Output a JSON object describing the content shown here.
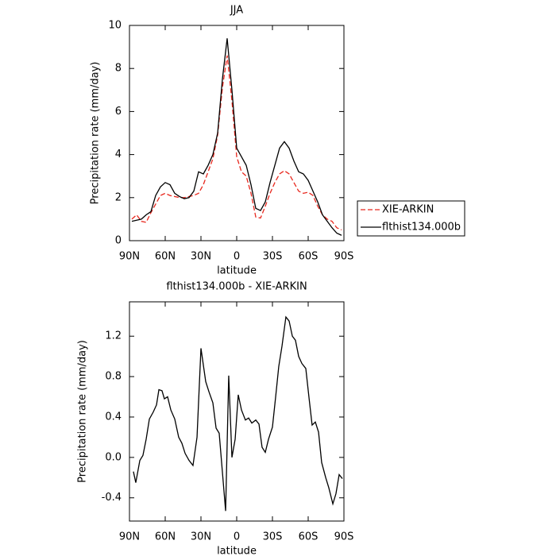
{
  "chart_data": [
    {
      "type": "line",
      "title": "JJA",
      "xlabel": "latitude",
      "ylabel": "Precipitation rate (mm/day)",
      "x": [
        88,
        84,
        80,
        76,
        72,
        68,
        64,
        60,
        56,
        52,
        48,
        44,
        40,
        36,
        32,
        28,
        24,
        20,
        16,
        12,
        8,
        4,
        0,
        -4,
        -8,
        -12,
        -16,
        -20,
        -24,
        -28,
        -32,
        -36,
        -40,
        -44,
        -48,
        -52,
        -56,
        -60,
        -64,
        -68,
        -72,
        -76,
        -80,
        -84,
        -88
      ],
      "series": [
        {
          "name": "XIE-ARKIN",
          "color": "#e8281e",
          "style": "dashed",
          "values": [
            1.0,
            1.2,
            0.9,
            0.85,
            1.3,
            1.7,
            2.1,
            2.2,
            2.1,
            2.05,
            2.0,
            2.0,
            2.05,
            2.1,
            2.2,
            2.6,
            3.2,
            3.8,
            4.9,
            7.1,
            8.6,
            6.5,
            3.9,
            3.2,
            3.0,
            2.2,
            1.1,
            1.05,
            1.6,
            2.2,
            2.7,
            3.1,
            3.25,
            3.1,
            2.7,
            2.3,
            2.2,
            2.25,
            2.1,
            1.6,
            1.2,
            1.0,
            0.9,
            0.6,
            0.5
          ]
        },
        {
          "name": "flthist134.000b",
          "color": "#000000",
          "style": "solid",
          "values": [
            0.9,
            0.95,
            1.0,
            1.2,
            1.35,
            2.1,
            2.5,
            2.7,
            2.6,
            2.2,
            2.05,
            1.95,
            2.0,
            2.3,
            3.2,
            3.1,
            3.5,
            4.0,
            5.0,
            7.5,
            9.4,
            7.0,
            4.3,
            3.9,
            3.5,
            2.6,
            1.5,
            1.4,
            1.8,
            2.7,
            3.5,
            4.3,
            4.6,
            4.3,
            3.7,
            3.2,
            3.1,
            2.8,
            2.3,
            1.8,
            1.2,
            0.9,
            0.6,
            0.35,
            0.25
          ]
        }
      ],
      "xlim": [
        90,
        -90
      ],
      "xticks": [
        {
          "value": 90,
          "label": "90N"
        },
        {
          "value": 60,
          "label": "60N"
        },
        {
          "value": 30,
          "label": "30N"
        },
        0,
        {
          "value": -30,
          "label": "30S"
        },
        {
          "value": -60,
          "label": "60S"
        },
        {
          "value": -90,
          "label": "90S"
        }
      ],
      "ylim": [
        0,
        10
      ],
      "yticks": [
        0,
        2,
        4,
        6,
        8,
        10
      ],
      "legend": "right"
    },
    {
      "type": "line",
      "title": "flthist134.000b - XIE-ARKIN",
      "xlabel": "latitude",
      "ylabel": "Precipitation rate (mm/day)",
      "x": [
        86.7,
        84.7,
        81.3,
        78.7,
        76,
        73.3,
        70,
        67.3,
        65.3,
        62.7,
        60.7,
        58,
        55.3,
        52,
        48.7,
        46,
        43.3,
        40,
        36.7,
        33.3,
        30,
        26,
        23.3,
        20,
        17.3,
        14.7,
        9.3,
        6.7,
        4,
        1.3,
        -1.3,
        -4,
        -7.3,
        -10,
        -12.7,
        -16,
        -18.7,
        -21.3,
        -24,
        -26.7,
        -30,
        -32.7,
        -35.3,
        -38,
        -41.3,
        -44,
        -46.7,
        -49.3,
        -52,
        -54.7,
        -58,
        -60.7,
        -63.3,
        -66,
        -68.7,
        -71.3,
        -74.7,
        -77.3,
        -80.7,
        -83.3,
        -86,
        -88.7
      ],
      "values": [
        -0.14,
        -0.25,
        -0.03,
        0.02,
        0.18,
        0.38,
        0.45,
        0.52,
        0.67,
        0.66,
        0.58,
        0.6,
        0.47,
        0.38,
        0.2,
        0.14,
        0.04,
        -0.03,
        -0.08,
        0.2,
        1.08,
        0.75,
        0.65,
        0.54,
        0.29,
        0.24,
        -0.53,
        0.81,
        0.0,
        0.18,
        0.62,
        0.47,
        0.37,
        0.39,
        0.34,
        0.37,
        0.33,
        0.1,
        0.05,
        0.18,
        0.3,
        0.6,
        0.9,
        1.1,
        1.39,
        1.35,
        1.2,
        1.16,
        1.0,
        0.93,
        0.88,
        0.59,
        0.32,
        0.35,
        0.25,
        -0.05,
        -0.2,
        -0.3,
        -0.46,
        -0.36,
        -0.17,
        -0.21
      ],
      "color": "#000000",
      "xlim": [
        90,
        -90
      ],
      "xticks": [
        {
          "value": 90,
          "label": "90N"
        },
        {
          "value": 60,
          "label": "60N"
        },
        {
          "value": 30,
          "label": "30N"
        },
        0,
        {
          "value": -30,
          "label": "30S"
        },
        {
          "value": -60,
          "label": "60S"
        },
        {
          "value": -90,
          "label": "90S"
        }
      ],
      "ylim": [
        -0.63,
        1.54
      ],
      "yticks": [
        -0.4,
        {
          "value": 0,
          "label": "0.0"
        },
        0.4,
        0.8,
        1.2
      ]
    }
  ]
}
